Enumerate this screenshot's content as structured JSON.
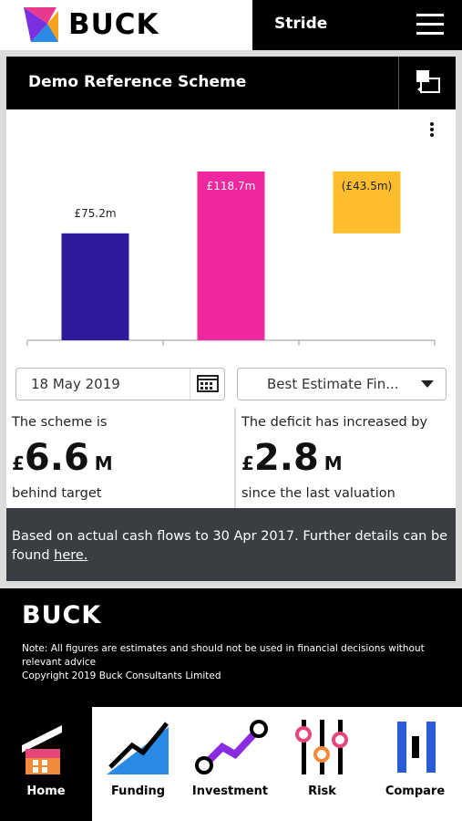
{
  "header": {
    "brand": "BUCK",
    "app_name": "Stride"
  },
  "card": {
    "title": "Demo Reference Scheme"
  },
  "chart_data": {
    "type": "waterfall",
    "values": [
      75.2,
      118.7,
      -43.5
    ],
    "value_labels": [
      "£75.2m",
      "£118.7m",
      "(£43.5m)"
    ],
    "measure": [
      "absolute",
      "absolute",
      "relative"
    ],
    "colors": [
      "#2f1a9c",
      "#f0279f",
      "#fdbd2c"
    ]
  },
  "controls": {
    "date": "18 May 2019",
    "basis": "Best Estimate Fin..."
  },
  "panels": [
    {
      "lead": "The scheme is",
      "currency": "£",
      "amount": 6.6,
      "unit": "M",
      "trail": "behind target"
    },
    {
      "lead": "The deficit has increased by",
      "currency": "£",
      "amount": 2.8,
      "unit": "M",
      "trail": "since the last valuation"
    }
  ],
  "info": {
    "text": "Based on actual cash flows to 30 Apr 2017. Further details can be found ",
    "link": "here."
  },
  "footer": {
    "brand": "BUCK",
    "note": "Note: All figures are estimates and should not be used in financial decisions without relevant advice",
    "copyright": "Copyright 2019 Buck Consultants Limited"
  },
  "nav": [
    "Home",
    "Funding",
    "Investment",
    "Risk",
    "Compare"
  ]
}
